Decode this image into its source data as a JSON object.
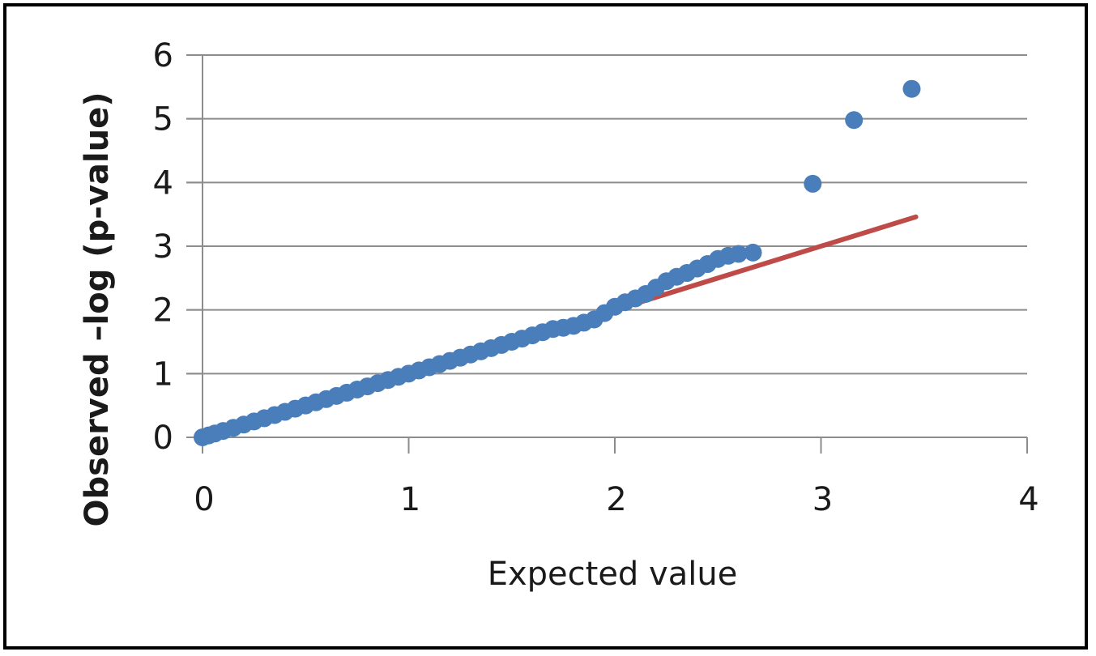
{
  "chart_data": {
    "type": "scatter",
    "title": "",
    "xlabel": "Expected value",
    "ylabel": "Observed –log (p-value)",
    "xlim": [
      0,
      4
    ],
    "ylim": [
      0,
      6
    ],
    "xticks": [
      "0",
      "1",
      "2",
      "3",
      "4"
    ],
    "yticks": [
      "0",
      "1",
      "2",
      "3",
      "4",
      "5",
      "6"
    ],
    "grid": "horizontal",
    "legend": "none",
    "series": [
      {
        "kind": "scatter",
        "color": "#4a7ebb",
        "points": [
          [
            0.0,
            0.0
          ],
          [
            0.03,
            0.03
          ],
          [
            0.06,
            0.06
          ],
          [
            0.1,
            0.1
          ],
          [
            0.15,
            0.15
          ],
          [
            0.2,
            0.2
          ],
          [
            0.25,
            0.25
          ],
          [
            0.3,
            0.3
          ],
          [
            0.35,
            0.35
          ],
          [
            0.4,
            0.4
          ],
          [
            0.45,
            0.45
          ],
          [
            0.5,
            0.5
          ],
          [
            0.55,
            0.55
          ],
          [
            0.6,
            0.6
          ],
          [
            0.65,
            0.65
          ],
          [
            0.7,
            0.7
          ],
          [
            0.75,
            0.75
          ],
          [
            0.8,
            0.8
          ],
          [
            0.85,
            0.85
          ],
          [
            0.9,
            0.9
          ],
          [
            0.95,
            0.95
          ],
          [
            1.0,
            1.0
          ],
          [
            1.05,
            1.05
          ],
          [
            1.1,
            1.1
          ],
          [
            1.15,
            1.15
          ],
          [
            1.2,
            1.2
          ],
          [
            1.25,
            1.25
          ],
          [
            1.3,
            1.3
          ],
          [
            1.35,
            1.35
          ],
          [
            1.4,
            1.4
          ],
          [
            1.45,
            1.45
          ],
          [
            1.5,
            1.5
          ],
          [
            1.55,
            1.55
          ],
          [
            1.6,
            1.6
          ],
          [
            1.65,
            1.65
          ],
          [
            1.7,
            1.7
          ],
          [
            1.75,
            1.72
          ],
          [
            1.8,
            1.75
          ],
          [
            1.85,
            1.8
          ],
          [
            1.9,
            1.85
          ],
          [
            1.95,
            1.95
          ],
          [
            2.0,
            2.05
          ],
          [
            2.05,
            2.12
          ],
          [
            2.1,
            2.18
          ],
          [
            2.15,
            2.25
          ],
          [
            2.2,
            2.35
          ],
          [
            2.25,
            2.45
          ],
          [
            2.3,
            2.52
          ],
          [
            2.35,
            2.58
          ],
          [
            2.4,
            2.65
          ],
          [
            2.45,
            2.72
          ],
          [
            2.5,
            2.8
          ],
          [
            2.55,
            2.85
          ],
          [
            2.6,
            2.88
          ],
          [
            2.67,
            2.9
          ],
          [
            2.96,
            3.98
          ],
          [
            3.16,
            4.98
          ],
          [
            3.44,
            5.47
          ]
        ]
      },
      {
        "kind": "line",
        "color": "#be4b48",
        "x": [
          2.05,
          3.46
        ],
        "y": [
          2.05,
          3.46
        ]
      }
    ]
  }
}
